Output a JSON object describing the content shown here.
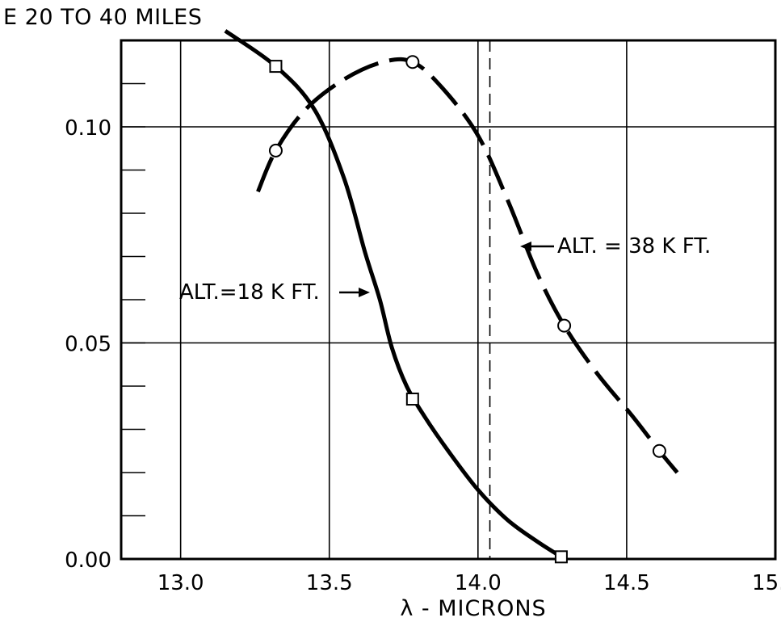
{
  "chart_data": {
    "type": "line",
    "title": "E 20 TO 40 MILES",
    "xlabel": "λ - MICRONS",
    "ylabel": "",
    "xlim": [
      12.8,
      15.0
    ],
    "ylim": [
      0.0,
      0.12
    ],
    "x_ticks": [
      13.0,
      13.5,
      14.0,
      14.5,
      15.0
    ],
    "x_tick_labels": [
      "13.0",
      "13.5",
      "14.0",
      "14.5",
      "15.0"
    ],
    "y_ticks": [
      0.0,
      0.05,
      0.1
    ],
    "y_tick_labels": [
      "0.00",
      "0.05",
      "0.10"
    ],
    "y_minor_step": 0.01,
    "grid": true,
    "reference_line_x": 14.04,
    "series": [
      {
        "name": "ALT.=18 K FT.",
        "label_text": "ALT.=18 K FT.",
        "line_style": "solid",
        "marker": "square",
        "curve": [
          [
            13.15,
            0.1222
          ],
          [
            13.32,
            0.114
          ],
          [
            13.45,
            0.104
          ],
          [
            13.55,
            0.088
          ],
          [
            13.62,
            0.071
          ],
          [
            13.67,
            0.06
          ],
          [
            13.71,
            0.049
          ],
          [
            13.76,
            0.04
          ],
          [
            13.82,
            0.033
          ],
          [
            13.9,
            0.025
          ],
          [
            14.0,
            0.016
          ],
          [
            14.1,
            0.009
          ],
          [
            14.2,
            0.004
          ],
          [
            14.28,
            0.0005
          ]
        ],
        "points": [
          [
            13.32,
            0.114
          ],
          [
            13.78,
            0.037
          ],
          [
            14.28,
            0.0005
          ]
        ]
      },
      {
        "name": "ALT. = 38 K FT.",
        "label_text": "ALT. = 38 K FT.",
        "line_style": "dashed",
        "marker": "circle",
        "curve": [
          [
            13.26,
            0.085
          ],
          [
            13.32,
            0.0945
          ],
          [
            13.42,
            0.104
          ],
          [
            13.55,
            0.111
          ],
          [
            13.68,
            0.115
          ],
          [
            13.78,
            0.115
          ],
          [
            13.88,
            0.109
          ],
          [
            14.0,
            0.098
          ],
          [
            14.1,
            0.083
          ],
          [
            14.2,
            0.066
          ],
          [
            14.29,
            0.054
          ],
          [
            14.4,
            0.043
          ],
          [
            14.52,
            0.033
          ],
          [
            14.61,
            0.025
          ],
          [
            14.67,
            0.02
          ]
        ],
        "points": [
          [
            13.32,
            0.0945
          ],
          [
            13.78,
            0.115
          ],
          [
            14.29,
            0.054
          ],
          [
            14.61,
            0.025
          ]
        ]
      }
    ]
  }
}
